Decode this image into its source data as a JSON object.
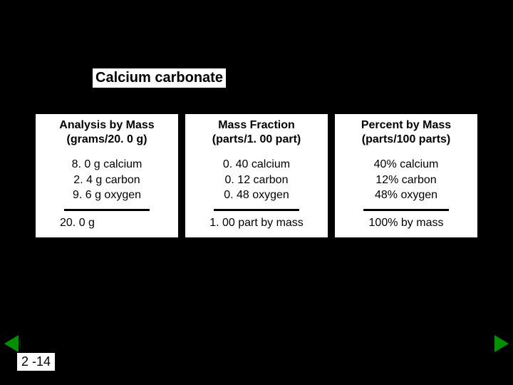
{
  "title": "Calcium carbonate",
  "columns": [
    {
      "headerLine1": "Analysis by Mass",
      "headerLine2": "(grams/20. 0 g)",
      "val1": "8. 0 g calcium",
      "val2": "2. 4 g carbon",
      "val3": "9. 6 g oxygen",
      "total": "20. 0 g"
    },
    {
      "headerLine1": "Mass Fraction",
      "headerLine2": "(parts/1. 00 part)",
      "val1": "0. 40 calcium",
      "val2": "0. 12 carbon",
      "val3": "0. 48 oxygen",
      "total": "1. 00 part by mass"
    },
    {
      "headerLine1": "Percent by Mass",
      "headerLine2": "(parts/100 parts)",
      "val1": "40% calcium",
      "val2": "12% carbon",
      "val3": "48% oxygen",
      "total": "100% by mass"
    }
  ],
  "pageNumber": "2 -14",
  "colors": {
    "background": "#000000",
    "panel": "#ffffff",
    "text": "#000000",
    "arrow": "#009000"
  }
}
